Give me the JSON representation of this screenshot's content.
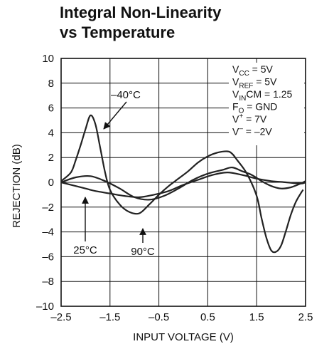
{
  "chart_data": {
    "type": "line",
    "title": [
      "Integral Non-Linearity",
      "vs Temperature"
    ],
    "xlabel": "INPUT VOLTAGE (V)",
    "ylabel": "REJECTION (dB)",
    "xlim": [
      -2.5,
      2.5
    ],
    "ylim": [
      -10,
      10
    ],
    "xticks": [
      "-2.5",
      "-1.5",
      "-0.5",
      "0.5",
      "1.5",
      "2.5"
    ],
    "yticks": [
      "10",
      "8",
      "6",
      "4",
      "2",
      "0",
      "-2",
      "-4",
      "-6",
      "-8",
      "-10"
    ],
    "grid": true,
    "conditions": [
      {
        "base": "V",
        "sub": "CC",
        "sup": "",
        "rest": " = 5V"
      },
      {
        "base": "V",
        "sub": "REF",
        "sup": "",
        "rest": " = 5V"
      },
      {
        "base": "V",
        "sub": "IN",
        "sup": "",
        "rest": "CM = 1.25"
      },
      {
        "base": "F",
        "sub": "O",
        "sup": "",
        "rest": " = GND"
      },
      {
        "base": "V",
        "sub": "",
        "sup": "+",
        "rest": " = 7V"
      },
      {
        "base": "V",
        "sub": "",
        "sup": "–",
        "rest": " = –2V"
      }
    ],
    "series": [
      {
        "name": "–40°C",
        "x": [
          -2.5,
          -2.3,
          -2.2,
          -2.1,
          -2.0,
          -1.9,
          -1.8,
          -1.7,
          -1.6,
          -1.5,
          -1.3,
          -1.1,
          -0.9,
          -0.7,
          -0.5,
          -0.3,
          -0.1,
          0.1,
          0.3,
          0.5,
          0.7,
          0.9,
          1.0,
          1.1,
          1.3,
          1.5,
          1.6,
          1.7,
          1.8,
          1.9,
          2.0,
          2.1,
          2.2,
          2.3,
          2.4,
          2.45
        ],
        "y": [
          0.1,
          0.8,
          1.8,
          3.0,
          4.3,
          5.4,
          4.7,
          2.8,
          0.8,
          -0.6,
          -1.8,
          -2.4,
          -2.5,
          -1.8,
          -1.0,
          -0.3,
          0.3,
          0.9,
          1.6,
          2.1,
          2.4,
          2.5,
          2.3,
          1.8,
          0.7,
          -1.1,
          -2.9,
          -4.5,
          -5.5,
          -5.6,
          -5.1,
          -3.9,
          -2.6,
          -1.6,
          -0.9,
          -0.6
        ]
      },
      {
        "name": "25°C",
        "x": [
          -2.5,
          -2.2,
          -2.0,
          -1.8,
          -1.5,
          -1.2,
          -0.9,
          -0.6,
          -0.3,
          0.0,
          0.3,
          0.6,
          0.9,
          1.2,
          1.5,
          1.8,
          2.1,
          2.4,
          2.5
        ],
        "y": [
          0.0,
          -0.3,
          -0.5,
          -0.7,
          -0.9,
          -1.1,
          -1.2,
          -1.0,
          -0.7,
          -0.2,
          0.2,
          0.6,
          0.8,
          0.6,
          0.3,
          0.1,
          0.0,
          -0.1,
          0.0
        ]
      },
      {
        "name": "90°C",
        "x": [
          -2.5,
          -2.2,
          -1.9,
          -1.6,
          -1.3,
          -1.0,
          -0.7,
          -0.4,
          -0.1,
          0.2,
          0.5,
          0.8,
          1.0,
          1.2,
          1.4,
          1.6,
          1.8,
          2.0,
          2.2,
          2.4,
          2.5
        ],
        "y": [
          0.0,
          0.4,
          0.5,
          0.1,
          -0.5,
          -1.2,
          -1.4,
          -1.1,
          -0.5,
          0.2,
          0.7,
          1.0,
          1.2,
          0.9,
          0.6,
          0.1,
          -0.3,
          -0.5,
          -0.4,
          -0.1,
          0.1
        ]
      }
    ],
    "annotations": [
      {
        "text": "–40°C",
        "series": 0
      },
      {
        "text": "25°C",
        "series": 1
      },
      {
        "text": "90°C",
        "series": 2
      }
    ]
  }
}
